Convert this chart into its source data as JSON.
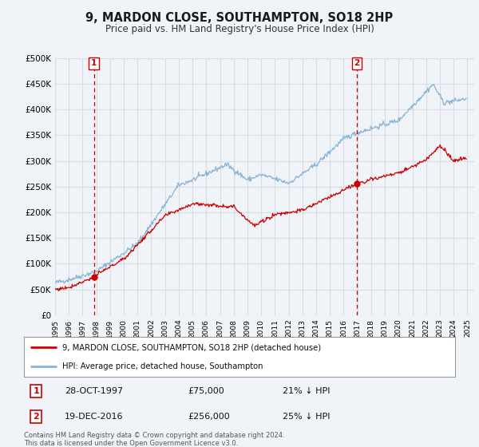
{
  "title": "9, MARDON CLOSE, SOUTHAMPTON, SO18 2HP",
  "subtitle": "Price paid vs. HM Land Registry's House Price Index (HPI)",
  "legend_label_red": "9, MARDON CLOSE, SOUTHAMPTON, SO18 2HP (detached house)",
  "legend_label_blue": "HPI: Average price, detached house, Southampton",
  "annotation1_date": "28-OCT-1997",
  "annotation1_price": "£75,000",
  "annotation1_hpi": "21% ↓ HPI",
  "annotation1_year": 1997.83,
  "annotation1_value": 75000,
  "annotation2_date": "19-DEC-2016",
  "annotation2_price": "£256,000",
  "annotation2_hpi": "25% ↓ HPI",
  "annotation2_year": 2016.97,
  "annotation2_value": 256000,
  "red_color": "#cc0000",
  "blue_color": "#8ab4d4",
  "vline_color": "#cc0000",
  "background_color": "#f0f4f8",
  "grid_color": "#d8dde3",
  "ylim": [
    0,
    500000
  ],
  "yticks": [
    0,
    50000,
    100000,
    150000,
    200000,
    250000,
    300000,
    350000,
    400000,
    450000,
    500000
  ],
  "ytick_labels": [
    "£0",
    "£50K",
    "£100K",
    "£150K",
    "£200K",
    "£250K",
    "£300K",
    "£350K",
    "£400K",
    "£450K",
    "£500K"
  ],
  "footnote": "Contains HM Land Registry data © Crown copyright and database right 2024.\nThis data is licensed under the Open Government Licence v3.0.",
  "xlim_start": 1995.0,
  "xlim_end": 2025.5
}
